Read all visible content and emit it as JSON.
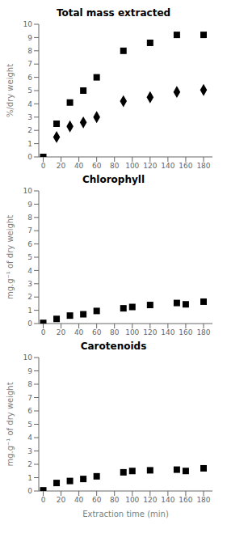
{
  "chart_data": [
    {
      "type": "scatter",
      "title": "Total mass extracted",
      "ylabel": "%/dry weight",
      "xlim": [
        -5,
        190
      ],
      "xticks": [
        0,
        20,
        40,
        60,
        80,
        100,
        120,
        140,
        160,
        180
      ],
      "ylim": [
        0,
        10
      ],
      "yticks": [
        0,
        1,
        2,
        3,
        4,
        5,
        6,
        7,
        8,
        9,
        10
      ],
      "grid": false,
      "series": [
        {
          "color": "black",
          "marker": "square",
          "x": [
            0,
            15,
            30,
            45,
            60,
            90,
            120,
            150,
            180
          ],
          "values": [
            0,
            2.5,
            4.1,
            5.0,
            6.0,
            8.0,
            8.6,
            9.2,
            9.2
          ]
        },
        {
          "color": "black",
          "marker": "diamond",
          "x": [
            15,
            30,
            45,
            60,
            90,
            120,
            150,
            180
          ],
          "values": [
            1.5,
            2.3,
            2.6,
            3.0,
            4.2,
            4.5,
            4.9,
            5.05
          ]
        }
      ]
    },
    {
      "type": "scatter",
      "title": "Chlorophyll",
      "ylabel": "mg.g⁻¹ of dry weight",
      "xlim": [
        -5,
        190
      ],
      "xticks": [
        0,
        20,
        40,
        60,
        80,
        100,
        120,
        140,
        160,
        180
      ],
      "ylim": [
        0,
        10
      ],
      "yticks": [
        0,
        1,
        2,
        3,
        4,
        5,
        6,
        7,
        8,
        9,
        10
      ],
      "grid": false,
      "series": [
        {
          "color": "black",
          "marker": "square",
          "x": [
            0,
            15,
            30,
            45,
            60,
            90,
            100,
            120,
            150,
            160,
            180
          ],
          "values": [
            0.05,
            0.35,
            0.6,
            0.7,
            0.95,
            1.15,
            1.25,
            1.4,
            1.55,
            1.45,
            1.65
          ]
        }
      ]
    },
    {
      "type": "scatter",
      "title": "Carotenoids",
      "ylabel": "mg.g⁻¹ of dry weight",
      "xlabel": "Extraction time (min)",
      "xlim": [
        -5,
        190
      ],
      "xticks": [
        0,
        20,
        40,
        60,
        80,
        100,
        120,
        140,
        160,
        180
      ],
      "ylim": [
        0,
        10
      ],
      "yticks": [
        0,
        1,
        2,
        3,
        4,
        5,
        6,
        7,
        8,
        9,
        10
      ],
      "grid": false,
      "series": [
        {
          "color": "black",
          "marker": "square",
          "x": [
            0,
            15,
            30,
            45,
            60,
            90,
            100,
            120,
            150,
            160,
            180
          ],
          "values": [
            0.05,
            0.6,
            0.75,
            0.9,
            1.1,
            1.4,
            1.5,
            1.55,
            1.6,
            1.5,
            1.7
          ]
        }
      ]
    }
  ]
}
